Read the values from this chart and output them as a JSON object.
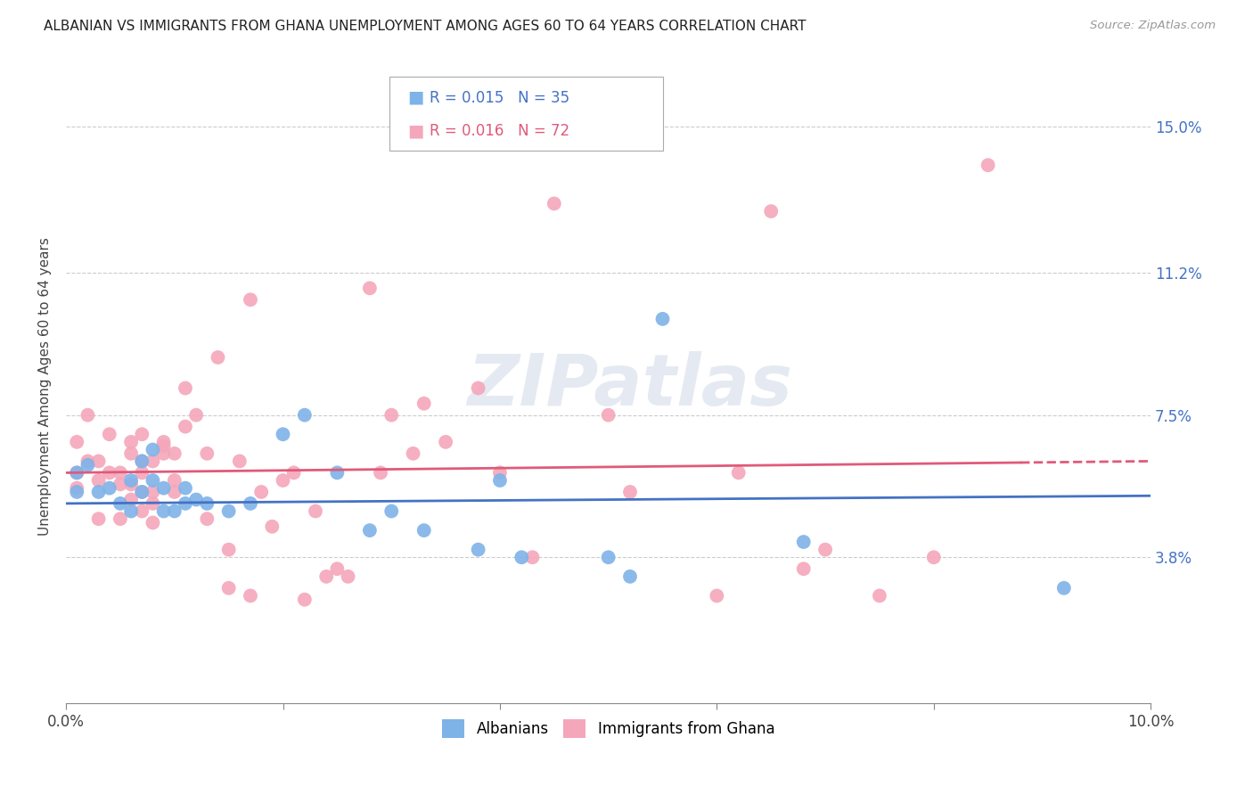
{
  "title": "ALBANIAN VS IMMIGRANTS FROM GHANA UNEMPLOYMENT AMONG AGES 60 TO 64 YEARS CORRELATION CHART",
  "source": "Source: ZipAtlas.com",
  "ylabel": "Unemployment Among Ages 60 to 64 years",
  "xlim": [
    0.0,
    0.1
  ],
  "ylim": [
    0.0,
    0.165
  ],
  "xtick_positions": [
    0.0,
    0.02,
    0.04,
    0.06,
    0.08,
    0.1
  ],
  "xtick_labels": [
    "0.0%",
    "",
    "",
    "",
    "",
    "10.0%"
  ],
  "ytick_values_right": [
    0.15,
    0.112,
    0.075,
    0.038
  ],
  "ytick_labels_right": [
    "15.0%",
    "11.2%",
    "7.5%",
    "3.8%"
  ],
  "albanian_color": "#7eb3e8",
  "ghana_color": "#f4a7bb",
  "trendline_albanian_color": "#4472c4",
  "trendline_ghana_color": "#e05a7a",
  "legend_r_albanian": "R = 0.015",
  "legend_n_albanian": "N = 35",
  "legend_r_ghana": "R = 0.016",
  "legend_n_ghana": "N = 72",
  "watermark": "ZIPatlas",
  "bottom_legend_albanian": "Albanians",
  "bottom_legend_ghana": "Immigrants from Ghana",
  "albanian_trend": [
    0.052,
    0.054
  ],
  "ghana_trend": [
    0.06,
    0.063
  ],
  "albanian_x": [
    0.001,
    0.001,
    0.002,
    0.003,
    0.004,
    0.005,
    0.006,
    0.006,
    0.007,
    0.007,
    0.008,
    0.008,
    0.009,
    0.009,
    0.01,
    0.011,
    0.011,
    0.012,
    0.013,
    0.015,
    0.017,
    0.02,
    0.022,
    0.025,
    0.028,
    0.03,
    0.033,
    0.038,
    0.04,
    0.042,
    0.05,
    0.052,
    0.055,
    0.068,
    0.092
  ],
  "albanian_y": [
    0.055,
    0.06,
    0.062,
    0.055,
    0.056,
    0.052,
    0.05,
    0.058,
    0.055,
    0.063,
    0.058,
    0.066,
    0.056,
    0.05,
    0.05,
    0.052,
    0.056,
    0.053,
    0.052,
    0.05,
    0.052,
    0.07,
    0.075,
    0.06,
    0.045,
    0.05,
    0.045,
    0.04,
    0.058,
    0.038,
    0.038,
    0.033,
    0.1,
    0.042,
    0.03
  ],
  "ghana_x": [
    0.001,
    0.001,
    0.001,
    0.002,
    0.002,
    0.003,
    0.003,
    0.003,
    0.004,
    0.004,
    0.005,
    0.005,
    0.005,
    0.006,
    0.006,
    0.006,
    0.006,
    0.007,
    0.007,
    0.007,
    0.007,
    0.007,
    0.008,
    0.008,
    0.008,
    0.008,
    0.009,
    0.009,
    0.009,
    0.01,
    0.01,
    0.01,
    0.011,
    0.011,
    0.012,
    0.013,
    0.013,
    0.014,
    0.015,
    0.015,
    0.016,
    0.017,
    0.017,
    0.018,
    0.019,
    0.02,
    0.021,
    0.022,
    0.023,
    0.024,
    0.025,
    0.026,
    0.028,
    0.029,
    0.03,
    0.032,
    0.033,
    0.035,
    0.038,
    0.04,
    0.043,
    0.045,
    0.05,
    0.052,
    0.06,
    0.062,
    0.065,
    0.068,
    0.07,
    0.075,
    0.08,
    0.085
  ],
  "ghana_y": [
    0.056,
    0.06,
    0.068,
    0.063,
    0.075,
    0.058,
    0.063,
    0.048,
    0.06,
    0.07,
    0.048,
    0.057,
    0.06,
    0.057,
    0.053,
    0.065,
    0.068,
    0.055,
    0.063,
    0.06,
    0.05,
    0.07,
    0.063,
    0.055,
    0.052,
    0.047,
    0.067,
    0.065,
    0.068,
    0.065,
    0.058,
    0.055,
    0.072,
    0.082,
    0.075,
    0.065,
    0.048,
    0.09,
    0.04,
    0.03,
    0.063,
    0.105,
    0.028,
    0.055,
    0.046,
    0.058,
    0.06,
    0.027,
    0.05,
    0.033,
    0.035,
    0.033,
    0.108,
    0.06,
    0.075,
    0.065,
    0.078,
    0.068,
    0.082,
    0.06,
    0.038,
    0.13,
    0.075,
    0.055,
    0.028,
    0.06,
    0.128,
    0.035,
    0.04,
    0.028,
    0.038,
    0.14
  ]
}
